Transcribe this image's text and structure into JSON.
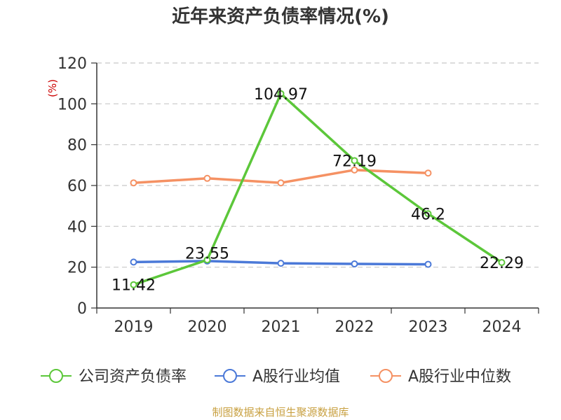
{
  "chart_data": {
    "type": "line",
    "title": "近年来资产负债率情况(%)",
    "ylabel": "(%)",
    "categories": [
      "2019",
      "2020",
      "2021",
      "2022",
      "2023",
      "2024"
    ],
    "ylim": [
      0,
      120
    ],
    "yticks": [
      0,
      20,
      40,
      60,
      80,
      100,
      120
    ],
    "grid": true,
    "legend_position": "bottom",
    "series": [
      {
        "name": "公司资产负债率",
        "color": "#5cc73a",
        "values": [
          11.42,
          23.55,
          104.97,
          72.19,
          46.2,
          22.29
        ],
        "labels": [
          "11.42",
          "23.55",
          "104.97",
          "72.19",
          "46.2",
          "22.29"
        ]
      },
      {
        "name": "A股行业均值",
        "color": "#4b79d8",
        "values": [
          22.5,
          23.0,
          21.9,
          21.6,
          21.4,
          null
        ]
      },
      {
        "name": "A股行业中位数",
        "color": "#f59163",
        "values": [
          61.3,
          63.5,
          61.3,
          67.6,
          66.1,
          null
        ]
      }
    ],
    "source": "制图数据来自恒生聚源数据库"
  }
}
